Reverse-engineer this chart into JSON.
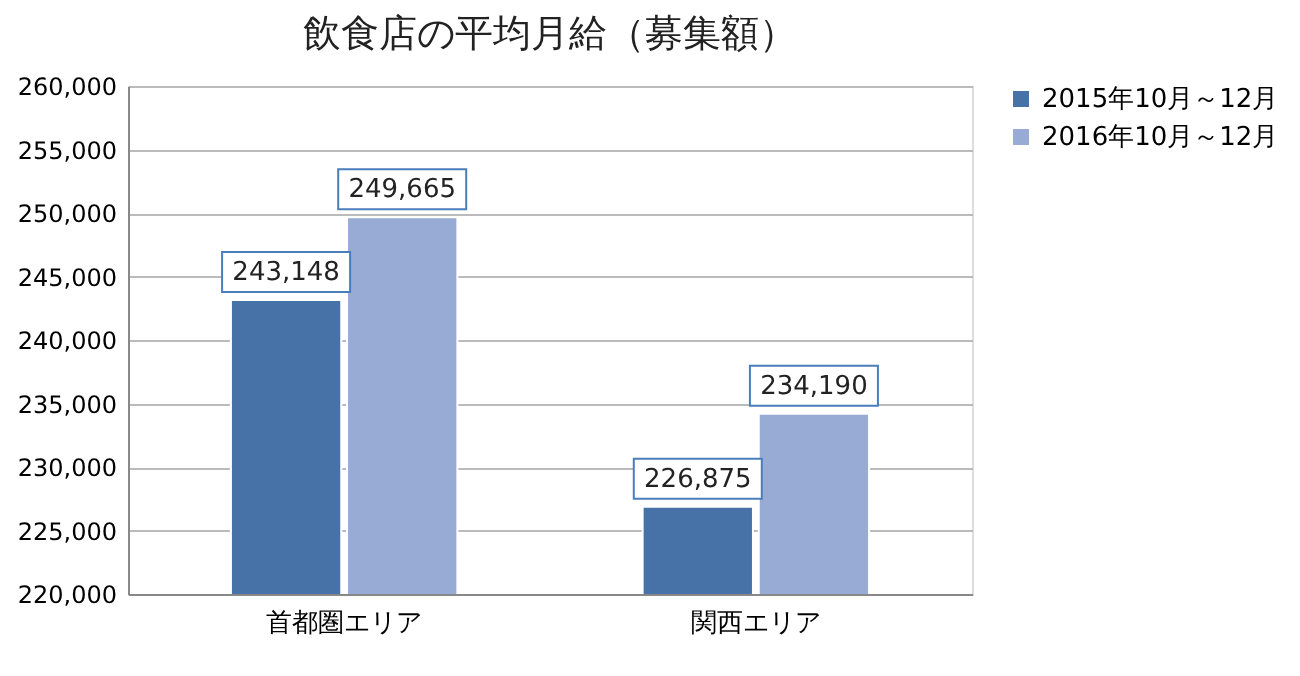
{
  "chart_data": {
    "type": "bar",
    "title": "飲食店の平均月給（募集額）",
    "categories": [
      "首都圏エリア",
      "関西エリア"
    ],
    "series": [
      {
        "name": "2015年10月～12月",
        "color": "#4672a8",
        "values": [
          243148,
          226875
        ],
        "value_labels": [
          "243,148",
          "226,875"
        ]
      },
      {
        "name": "2016年10月～12月",
        "color": "#97abd4",
        "values": [
          249665,
          234190
        ],
        "value_labels": [
          "249,665",
          "234,190"
        ]
      }
    ],
    "ylim": [
      220000,
      260000
    ],
    "yticks": [
      {
        "value": 220000,
        "label": "220,000"
      },
      {
        "value": 225000,
        "label": "225,000"
      },
      {
        "value": 230000,
        "label": "230,000"
      },
      {
        "value": 235000,
        "label": "235,000"
      },
      {
        "value": 240000,
        "label": "240,000"
      },
      {
        "value": 245000,
        "label": "245,000"
      },
      {
        "value": 250000,
        "label": "250,000"
      },
      {
        "value": 255000,
        "label": "255,000"
      },
      {
        "value": 260000,
        "label": "260,000"
      }
    ],
    "grid": "y",
    "legend": "right"
  }
}
